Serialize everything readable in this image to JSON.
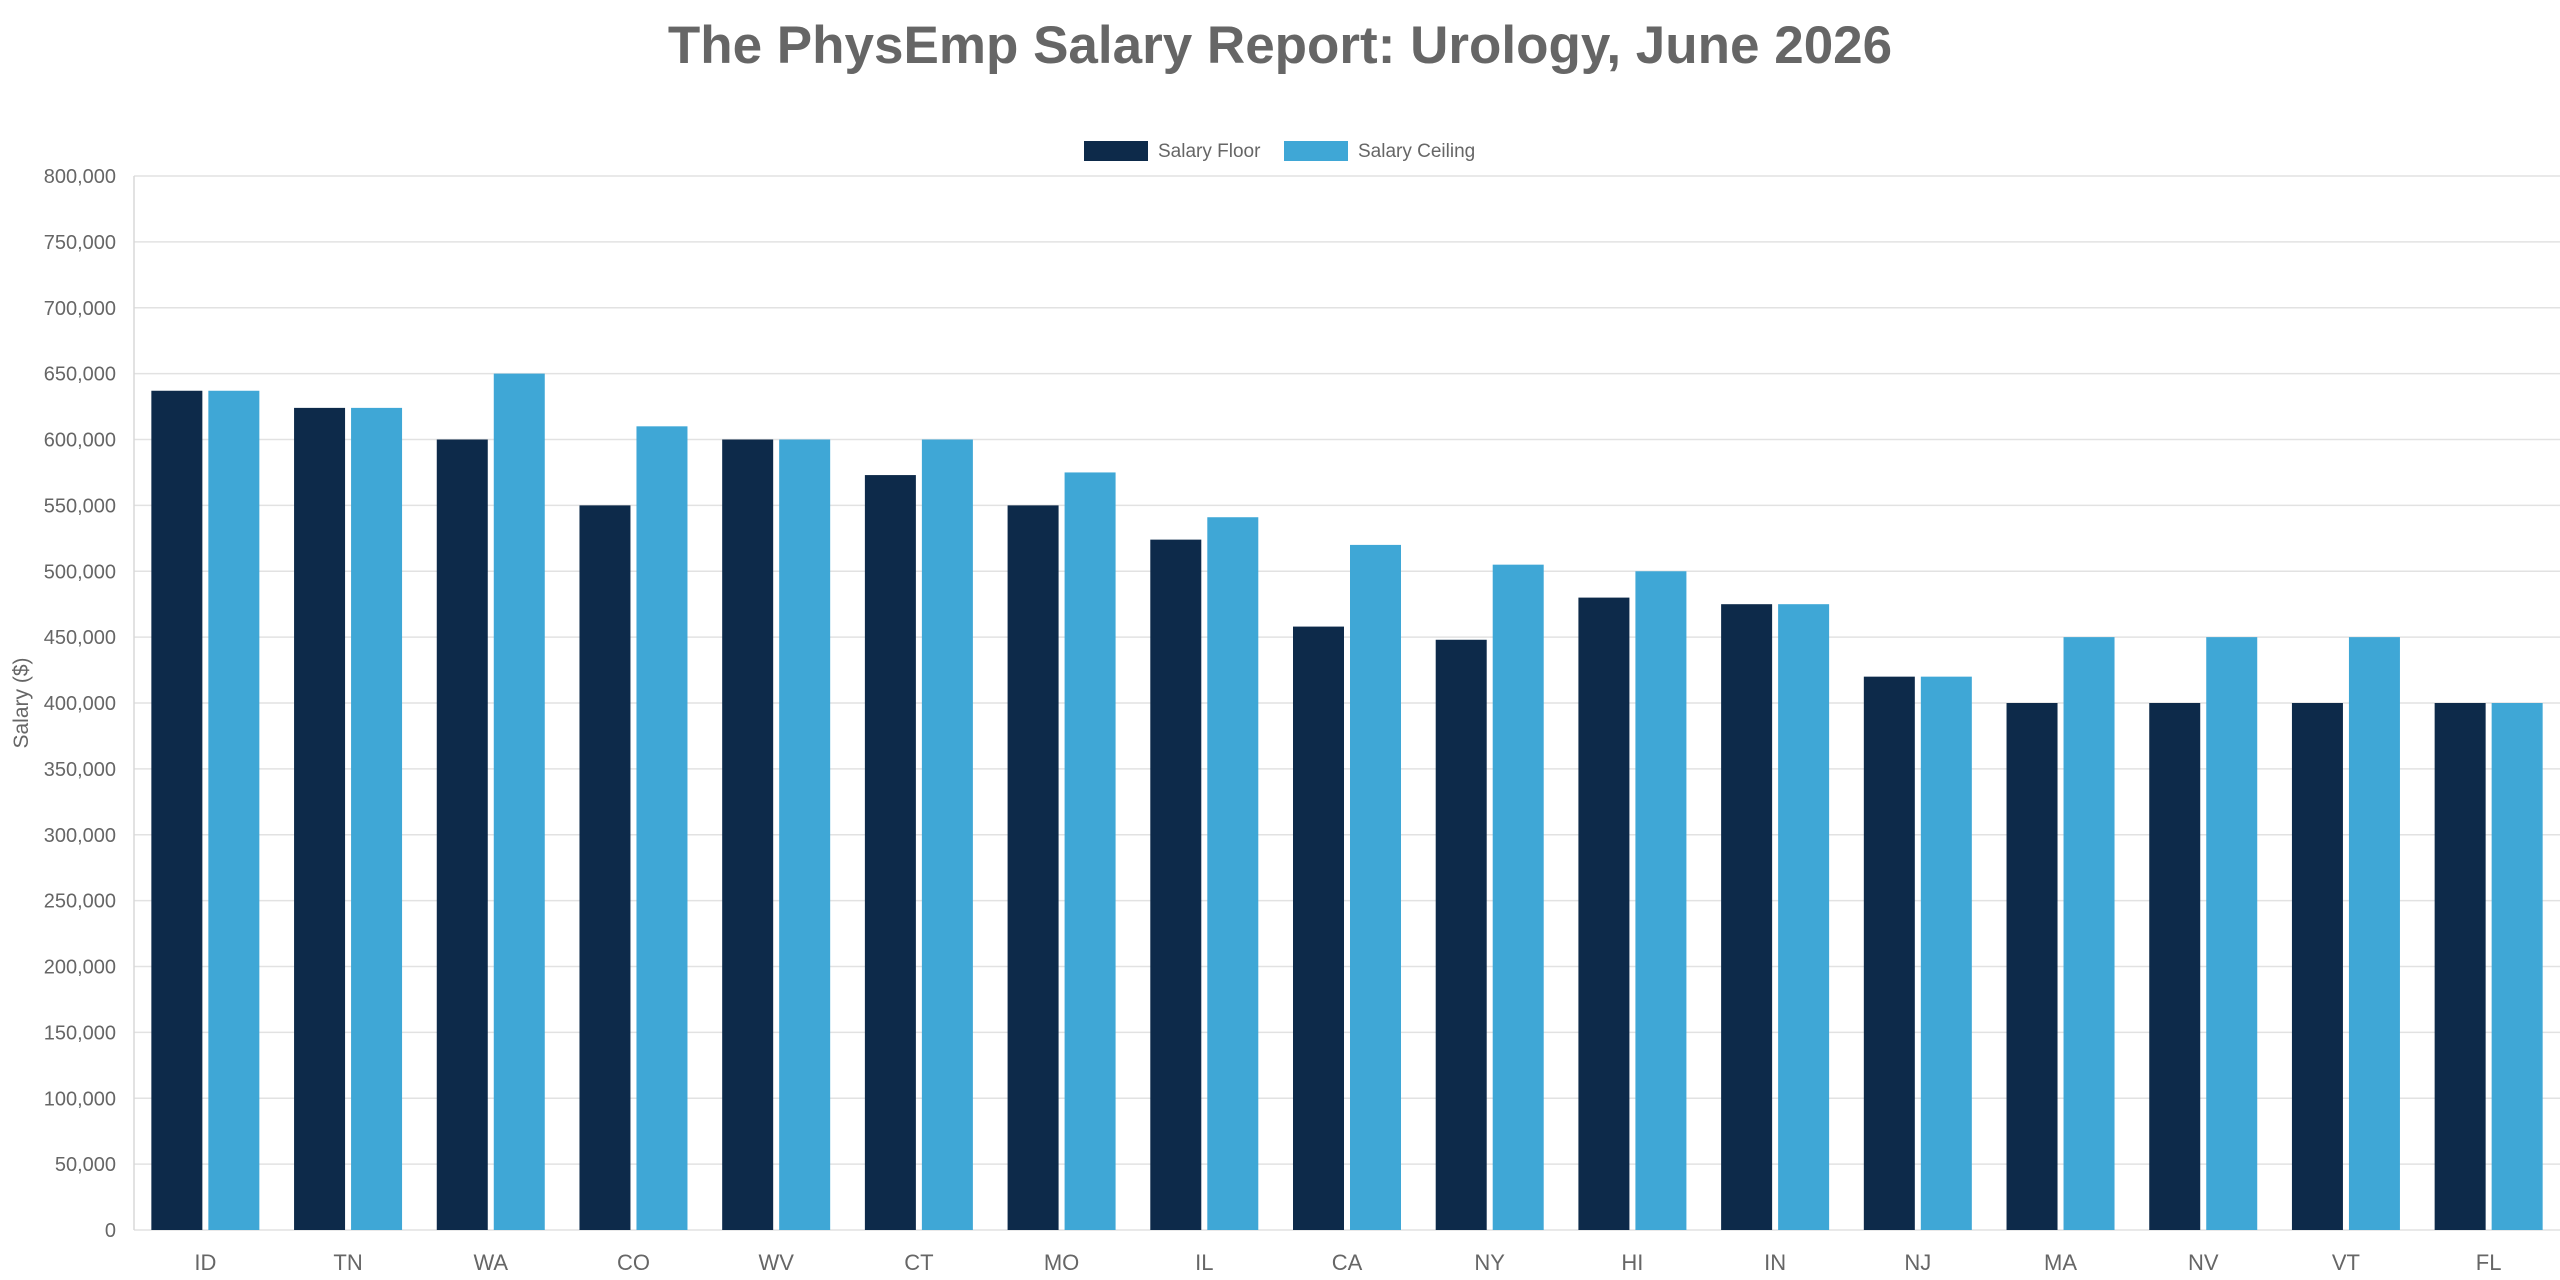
{
  "chart_data": {
    "type": "bar",
    "title": "The PhysEmp Salary Report: Urology, June 2026",
    "ylabel": "Salary ($)",
    "xlabel": "",
    "categories": [
      "ID",
      "TN",
      "WA",
      "CO",
      "WV",
      "CT",
      "MO",
      "IL",
      "CA",
      "NY",
      "HI",
      "IN",
      "NJ",
      "MA",
      "NV",
      "VT",
      "FL"
    ],
    "series": [
      {
        "name": "Salary Floor",
        "color": "#0d2a4a",
        "values": [
          637000,
          624000,
          600000,
          550000,
          600000,
          573000,
          550000,
          524000,
          458000,
          448000,
          480000,
          475000,
          420000,
          400000,
          400000,
          400000,
          400000
        ]
      },
      {
        "name": "Salary Ceiling",
        "color": "#3fa7d6",
        "values": [
          637000,
          624000,
          650000,
          610000,
          600000,
          600000,
          575000,
          541000,
          520000,
          505000,
          500000,
          475000,
          420000,
          450000,
          450000,
          450000,
          400000
        ]
      }
    ],
    "ylim": [
      0,
      800000
    ],
    "yticks": [
      0,
      50000,
      100000,
      150000,
      200000,
      250000,
      300000,
      350000,
      400000,
      450000,
      500000,
      550000,
      600000,
      650000,
      700000,
      750000,
      800000
    ],
    "ytick_labels": [
      "0",
      "50,000",
      "100,000",
      "150,000",
      "200,000",
      "250,000",
      "300,000",
      "350,000",
      "400,000",
      "450,000",
      "500,000",
      "550,000",
      "600,000",
      "650,000",
      "700,000",
      "750,000",
      "800,000"
    ],
    "grid": true,
    "legend_position": "top-center"
  }
}
